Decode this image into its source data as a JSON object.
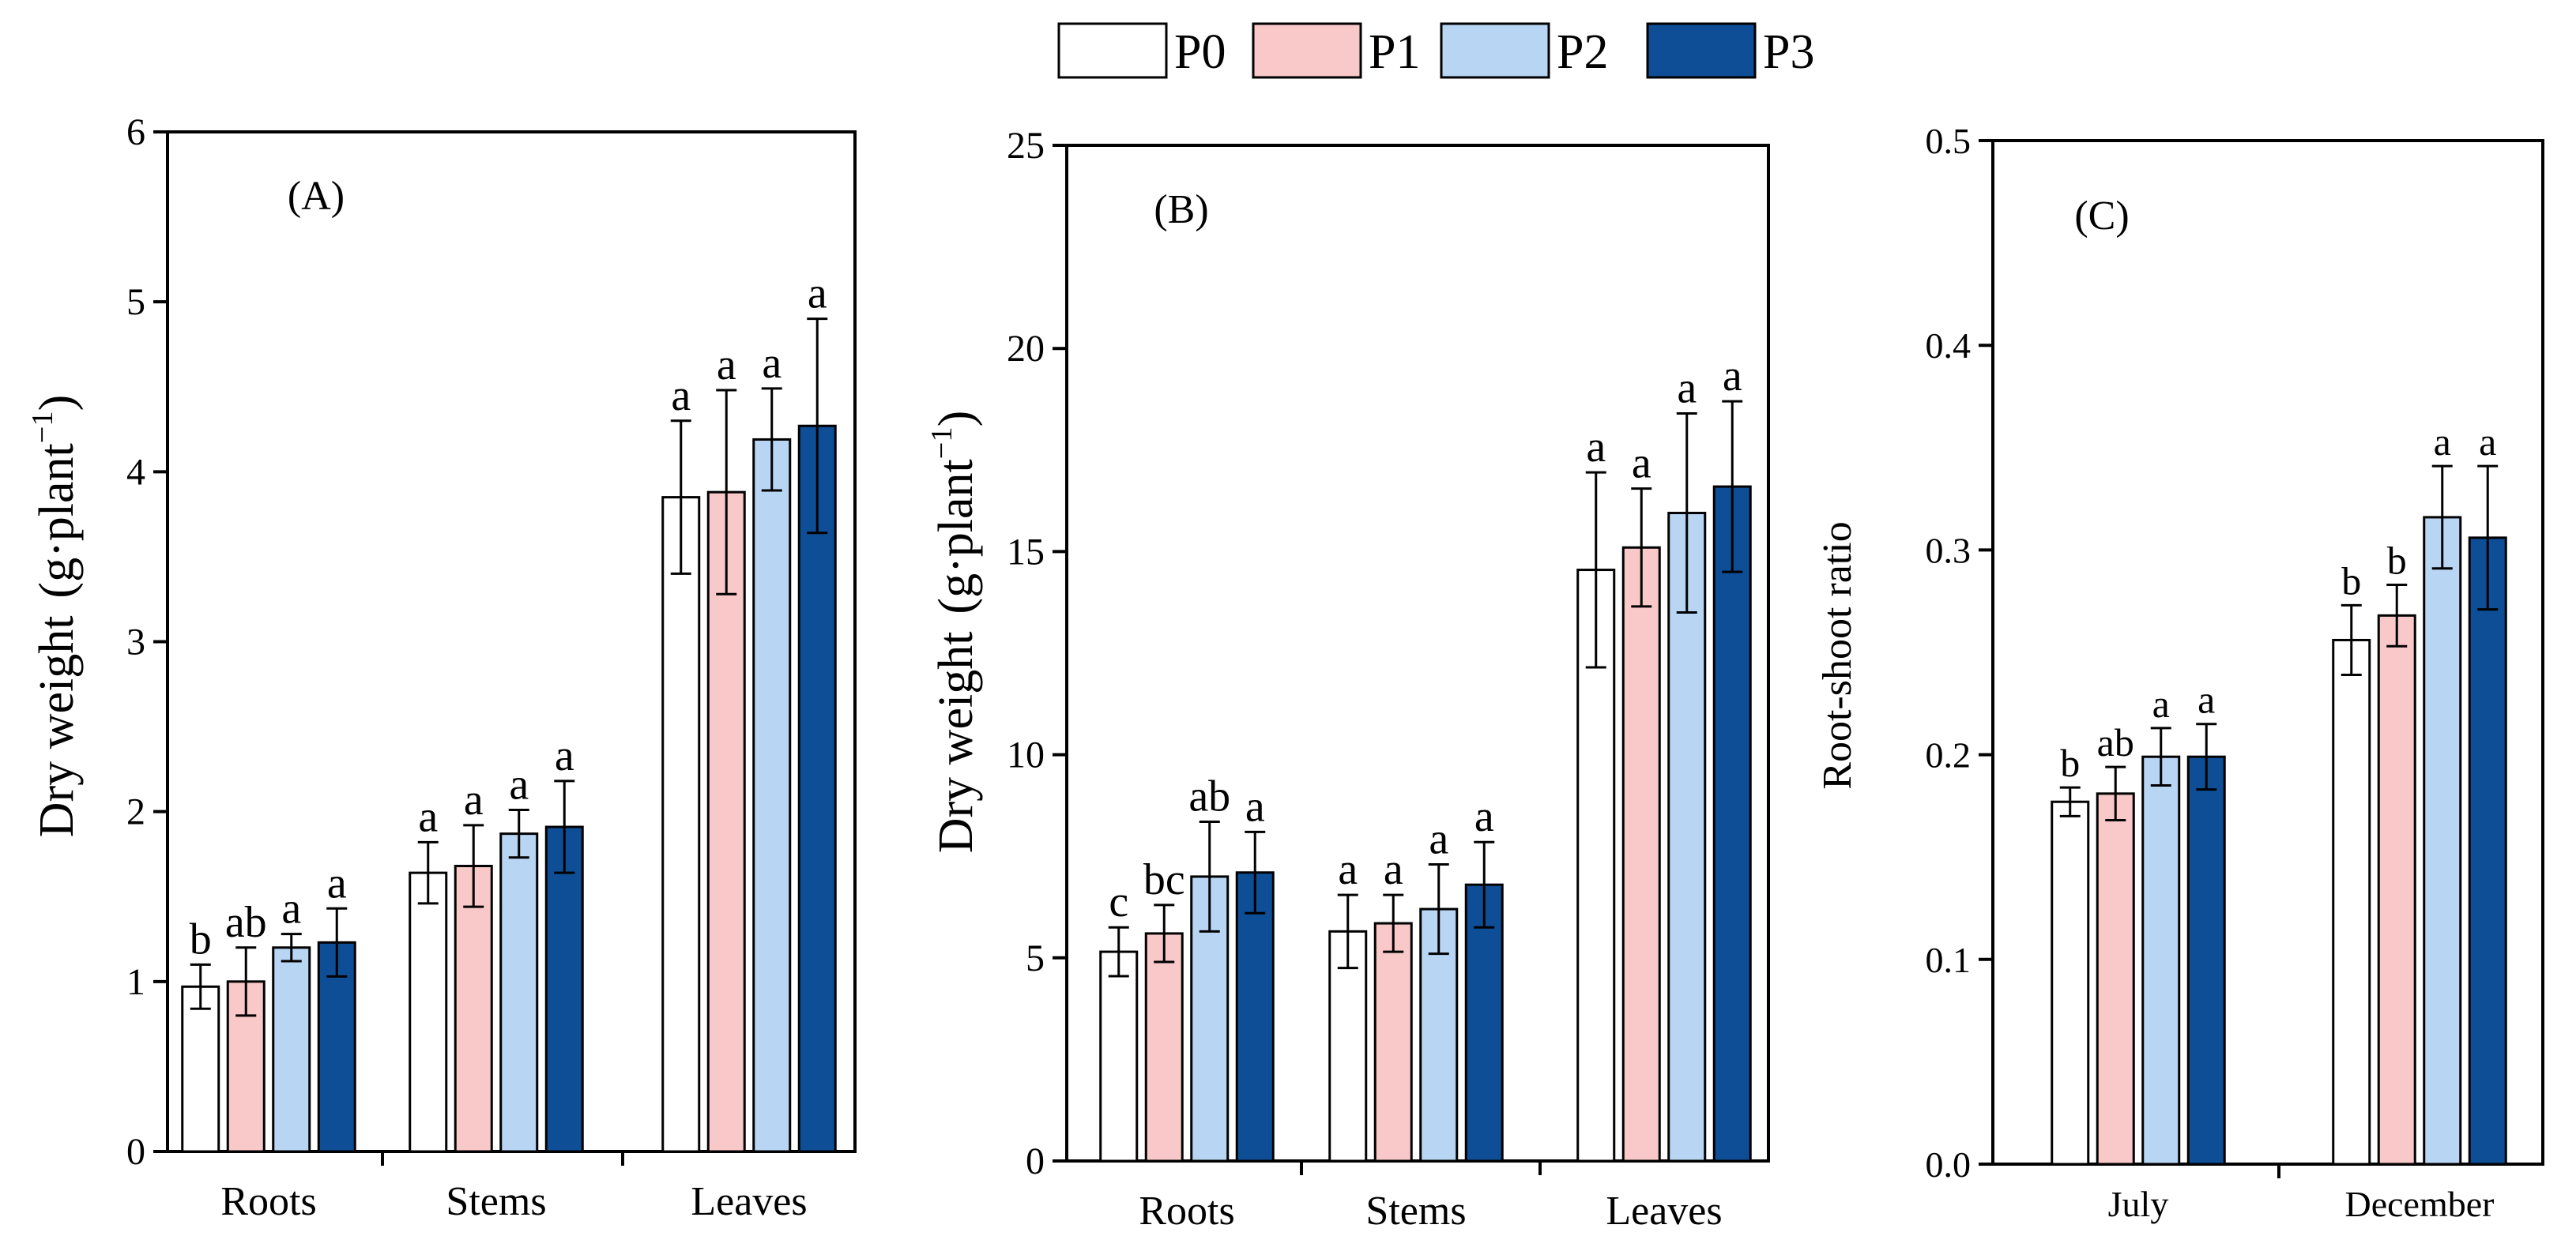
{
  "legend": [
    {
      "name": "P0",
      "color": "#ffffff"
    },
    {
      "name": "P1",
      "color": "#f9c8c8"
    },
    {
      "name": "P2",
      "color": "#b8d6f4"
    },
    {
      "name": "P3",
      "color": "#0e4e96"
    }
  ],
  "chart_data": [
    {
      "type": "bar",
      "panel_label": "(A)",
      "ylabel": "Dry weight",
      "ylabel_unit": "(g·plant",
      "ylabel_exp": "−1",
      "ylabel_close": ")",
      "ylim": [
        0,
        6
      ],
      "yticks": [
        "0",
        "1",
        "2",
        "3",
        "4",
        "5",
        "6"
      ],
      "categories": [
        "Roots",
        "Stems",
        "Leaves"
      ],
      "series": [
        {
          "name": "P0",
          "values": [
            0.97,
            1.64,
            3.85
          ],
          "errors": [
            0.13,
            0.18,
            0.45
          ],
          "letters": [
            "b",
            "a",
            "a"
          ]
        },
        {
          "name": "P1",
          "values": [
            1.0,
            1.68,
            3.88
          ],
          "errors": [
            0.2,
            0.24,
            0.6
          ],
          "letters": [
            "ab",
            "a",
            "a"
          ]
        },
        {
          "name": "P2",
          "values": [
            1.2,
            1.87,
            4.19
          ],
          "errors": [
            0.08,
            0.14,
            0.3
          ],
          "letters": [
            "a",
            "a",
            "a"
          ]
        },
        {
          "name": "P3",
          "values": [
            1.23,
            1.91,
            4.27
          ],
          "errors": [
            0.2,
            0.27,
            0.63
          ],
          "letters": [
            "a",
            "a",
            "a"
          ]
        }
      ]
    },
    {
      "type": "bar",
      "panel_label": "(B)",
      "ylabel": "Dry weight",
      "ylabel_unit": "(g·plant",
      "ylabel_exp": "−1",
      "ylabel_close": ")",
      "ylim": [
        0,
        25
      ],
      "yticks": [
        "0",
        "5",
        "10",
        "15",
        "20",
        "25"
      ],
      "categories": [
        "Roots",
        "Stems",
        "Leaves"
      ],
      "series": [
        {
          "name": "P0",
          "values": [
            5.15,
            5.65,
            14.55
          ],
          "errors": [
            0.6,
            0.9,
            2.4
          ],
          "letters": [
            "c",
            "a",
            "a"
          ]
        },
        {
          "name": "P1",
          "values": [
            5.6,
            5.85,
            15.1
          ],
          "errors": [
            0.7,
            0.7,
            1.45
          ],
          "letters": [
            "bc",
            "a",
            "a"
          ]
        },
        {
          "name": "P2",
          "values": [
            7.0,
            6.2,
            15.95
          ],
          "errors": [
            1.35,
            1.1,
            2.45
          ],
          "letters": [
            "ab",
            "a",
            "a"
          ]
        },
        {
          "name": "P3",
          "values": [
            7.1,
            6.8,
            16.6
          ],
          "errors": [
            1.0,
            1.05,
            2.1
          ],
          "letters": [
            "a",
            "a",
            "a"
          ]
        }
      ]
    },
    {
      "type": "bar",
      "panel_label": "(C)",
      "ylabel": "Root-shoot ratio",
      "ylim": [
        0,
        0.5
      ],
      "yticks": [
        "0.0",
        "0.1",
        "0.2",
        "0.3",
        "0.4",
        "0.5"
      ],
      "categories": [
        "July",
        "December"
      ],
      "series": [
        {
          "name": "P0",
          "values": [
            0.177,
            0.256
          ],
          "errors": [
            0.007,
            0.017
          ],
          "letters": [
            "b",
            "b"
          ]
        },
        {
          "name": "P1",
          "values": [
            0.181,
            0.268
          ],
          "errors": [
            0.013,
            0.015
          ],
          "letters": [
            "ab",
            "b"
          ]
        },
        {
          "name": "P2",
          "values": [
            0.199,
            0.316
          ],
          "errors": [
            0.014,
            0.025
          ],
          "letters": [
            "a",
            "a"
          ]
        },
        {
          "name": "P3",
          "values": [
            0.199,
            0.306
          ],
          "errors": [
            0.016,
            0.035
          ],
          "letters": [
            "a",
            "a"
          ]
        }
      ]
    }
  ]
}
